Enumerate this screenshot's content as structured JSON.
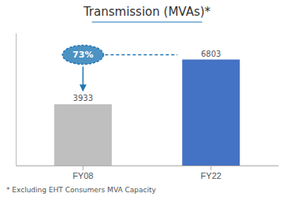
{
  "chart_data": {
    "type": "bar",
    "title": "Transmission (MVAs)*",
    "categories": [
      "FY08",
      "FY22"
    ],
    "values": [
      3933,
      6803
    ],
    "colors": [
      "#BFBFBF",
      "#4472C4"
    ],
    "ylim": [
      0,
      8500
    ],
    "data_labels": true,
    "tick_labels": "x",
    "annotations": [
      "73%"
    ],
    "footnote": "* Excluding EHT Consumers MVA Capacity"
  }
}
